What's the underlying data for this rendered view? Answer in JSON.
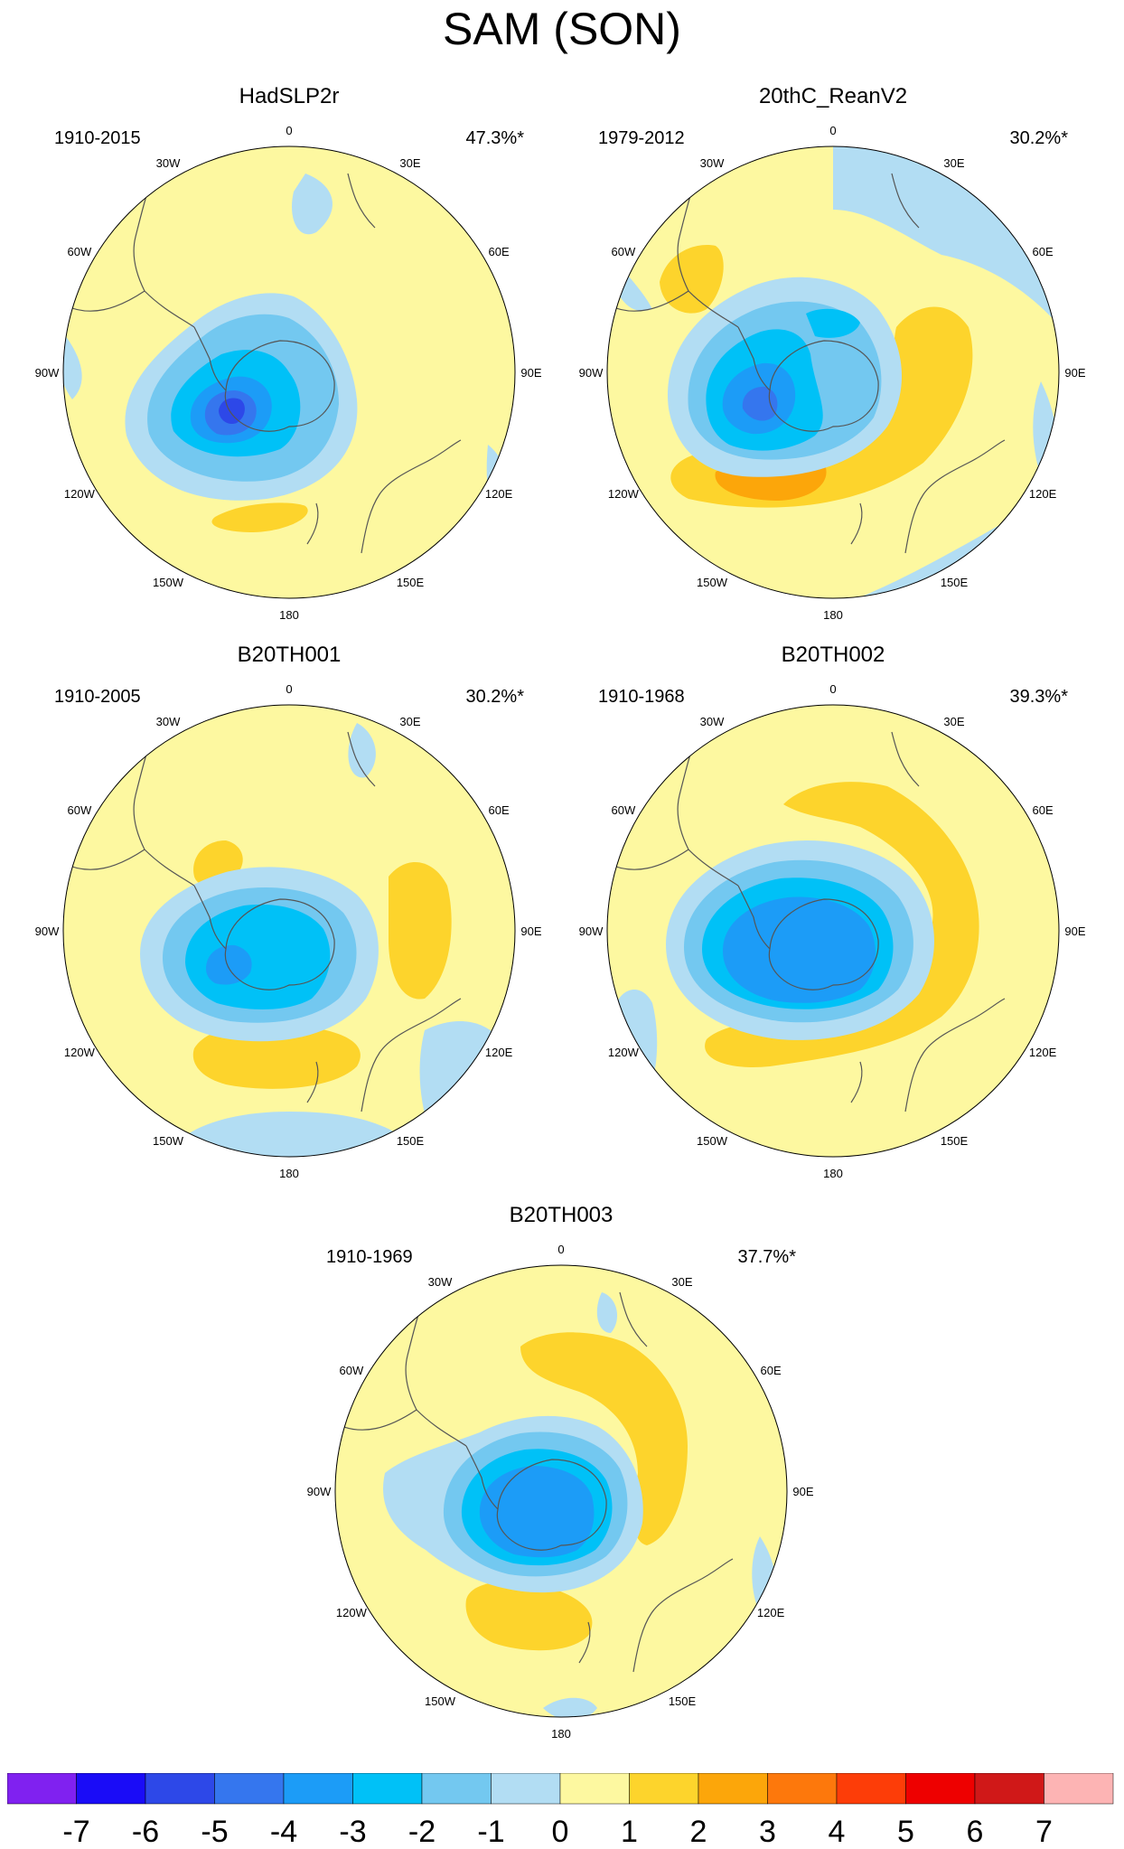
{
  "title": "SAM (SON)",
  "lon_labels": [
    "0",
    "30E",
    "60E",
    "90E",
    "120E",
    "150E",
    "180",
    "150W",
    "120W",
    "90W",
    "60W",
    "30W"
  ],
  "panels": [
    {
      "name": "HadSLP2r",
      "period": "1910-2015",
      "variance": "47.3%*"
    },
    {
      "name": "20thC_ReanV2",
      "period": "1979-2012",
      "variance": "30.2%*"
    },
    {
      "name": "B20TH001",
      "period": "1910-2005",
      "variance": "30.2%*"
    },
    {
      "name": "B20TH002",
      "period": "1910-1968",
      "variance": "39.3%*"
    },
    {
      "name": "B20TH003",
      "period": "1910-1969",
      "variance": "37.7%*"
    }
  ],
  "colorbar": {
    "labels": [
      "-7",
      "-6",
      "-5",
      "-4",
      "-3",
      "-2",
      "-1",
      "0",
      "1",
      "2",
      "3",
      "4",
      "5",
      "6",
      "7"
    ],
    "colors": [
      "#8021f0",
      "#1a0cf7",
      "#2d48e8",
      "#3576ee",
      "#1c9cf7",
      "#00c1f7",
      "#73c8f0",
      "#b2ddf3",
      "#fdf8a0",
      "#fdd42c",
      "#fca60a",
      "#fd780c",
      "#fd3d08",
      "#ee0000",
      "#d01818",
      "#fdb4b4"
    ]
  }
}
